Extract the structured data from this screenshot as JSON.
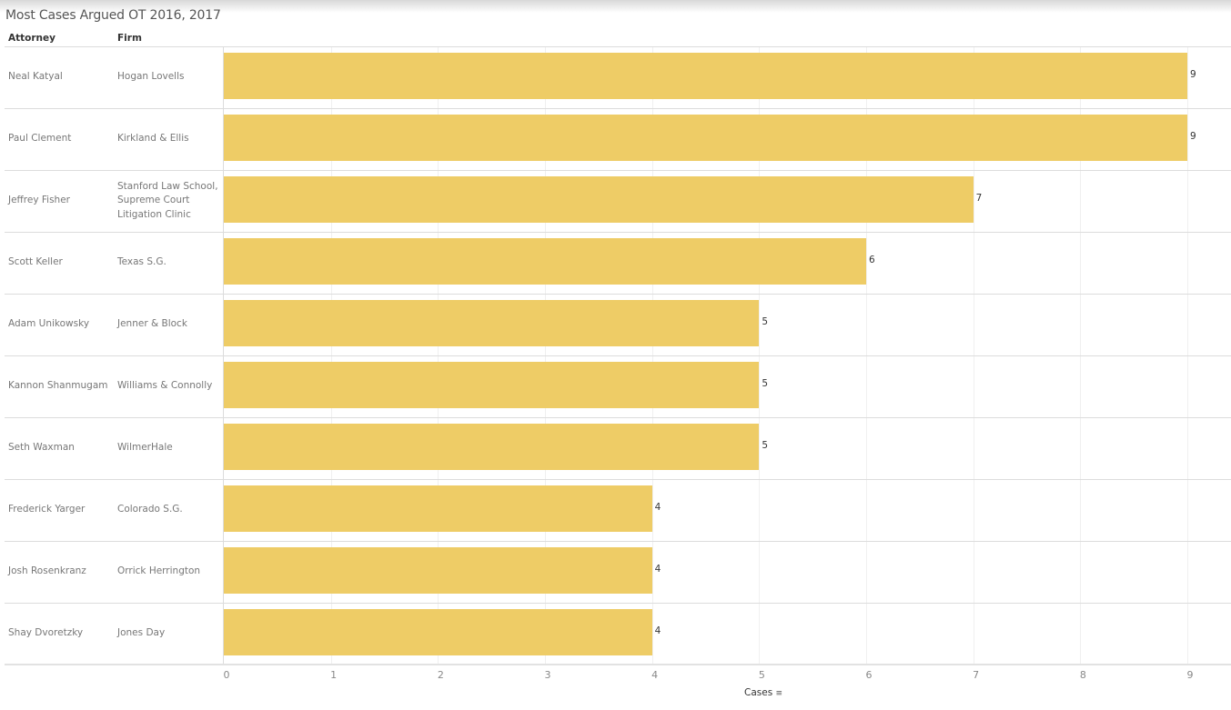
{
  "chart_data": {
    "type": "bar",
    "orientation": "horizontal",
    "title": "Most Cases Argued OT 2016, 2017",
    "row_headers": [
      "Attorney",
      "Firm"
    ],
    "rows": [
      {
        "attorney": "Neal Katyal",
        "firm": "Hogan Lovells",
        "value": 9
      },
      {
        "attorney": "Paul Clement",
        "firm": "Kirkland & Ellis",
        "value": 9
      },
      {
        "attorney": "Jeffrey Fisher",
        "firm": "Stanford Law School, Supreme Court Litigation Clinic",
        "value": 7
      },
      {
        "attorney": "Scott Keller",
        "firm": "Texas S.G.",
        "value": 6
      },
      {
        "attorney": "Adam Unikowsky",
        "firm": "Jenner & Block",
        "value": 5
      },
      {
        "attorney": "Kannon Shanmugam",
        "firm": "Williams & Connolly",
        "value": 5
      },
      {
        "attorney": "Seth Waxman",
        "firm": "WilmerHale",
        "value": 5
      },
      {
        "attorney": "Frederick Yarger",
        "firm": "Colorado S.G.",
        "value": 4
      },
      {
        "attorney": "Josh Rosenkranz",
        "firm": "Orrick Herrington",
        "value": 4
      },
      {
        "attorney": "Shay Dvoretzky",
        "firm": "Jones Day",
        "value": 4
      }
    ],
    "xlabel": "Cases",
    "xlim": [
      0,
      9
    ],
    "xticks": [
      "0",
      "1",
      "2",
      "3",
      "4",
      "5",
      "6",
      "7",
      "8",
      "9"
    ],
    "grid": true,
    "bar_color": "#eecc66"
  }
}
